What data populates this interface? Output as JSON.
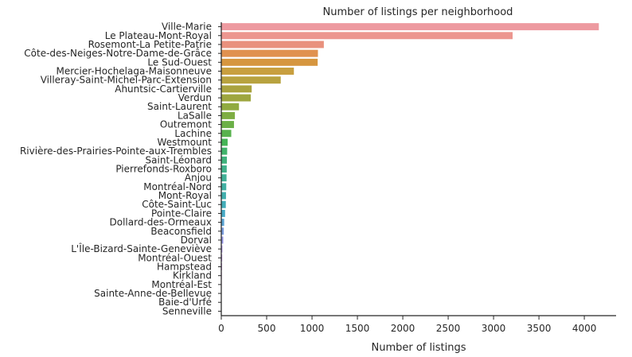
{
  "chart_data": {
    "type": "bar",
    "orientation": "horizontal",
    "title": "Number of listings per neighborhood",
    "xlabel": "Number of listings",
    "ylabel": "",
    "xlim": [
      0,
      4350
    ],
    "xticks": [
      0,
      500,
      1000,
      1500,
      2000,
      2500,
      3000,
      3500,
      4000
    ],
    "grid": false,
    "categories": [
      "Ville-Marie",
      "Le Plateau-Mont-Royal",
      "Rosemont-La Petite-Patrie",
      "Côte-des-Neiges-Notre-Dame-de-Grâce",
      "Le Sud-Ouest",
      "Mercier-Hochelaga-Maisonneuve",
      "Villeray-Saint-Michel-Parc-Extension",
      "Ahuntsic-Cartierville",
      "Verdun",
      "Saint-Laurent",
      "LaSalle",
      "Outremont",
      "Lachine",
      "Westmount",
      "Rivière-des-Prairies-Pointe-aux-Trembles",
      "Saint-Léonard",
      "Pierrefonds-Roxboro",
      "Anjou",
      "Montréal-Nord",
      "Mont-Royal",
      "Côte-Saint-Luc",
      "Pointe-Claire",
      "Dollard-des-Ormeaux",
      "Beaconsfield",
      "Dorval",
      "L'Île-Bizard-Sainte-Geneviève",
      "Montréal-Ouest",
      "Hampstead",
      "Kirkland",
      "Montréal-Est",
      "Sainte-Anne-de-Bellevue",
      "Baie-d'Urfé",
      "Senneville"
    ],
    "values": [
      4160,
      3210,
      1130,
      1065,
      1062,
      800,
      655,
      335,
      325,
      195,
      150,
      140,
      110,
      70,
      65,
      62,
      60,
      58,
      55,
      52,
      50,
      42,
      32,
      28,
      22,
      12,
      10,
      8,
      6,
      5,
      4,
      3,
      2
    ],
    "colors": [
      "#ed9aa0",
      "#ec968f",
      "#e9917d",
      "#e0914f",
      "#d6963f",
      "#c89f3f",
      "#b8a23f",
      "#aaa33f",
      "#9ea63f",
      "#90aa40",
      "#7ead43",
      "#6bb047",
      "#57b24d",
      "#45b456",
      "#41b36b",
      "#40b27c",
      "#40b18a",
      "#40b096",
      "#40afa2",
      "#41aead",
      "#43acb8",
      "#47a9c5",
      "#5aa3d2",
      "#7b9ddd",
      "#9595e2",
      "#a98ce1",
      "#b888de",
      "#c485db",
      "#d082d2",
      "#da80c7",
      "#e283bb",
      "#e889ad",
      "#ec91a3"
    ]
  }
}
